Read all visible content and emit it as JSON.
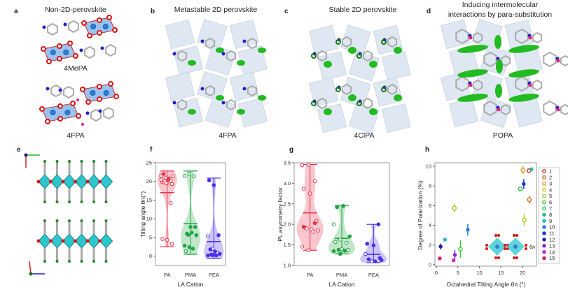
{
  "panels": {
    "a": {
      "letter": "a",
      "title": "Non-2D-perovskite",
      "captions": [
        "4MePA",
        "4FPA"
      ]
    },
    "b": {
      "letter": "b",
      "title": "Metastable 2D perovskite",
      "caption": "4FPA"
    },
    "c": {
      "letter": "c",
      "title": "Stable 2D perovskite",
      "caption": "4ClPA"
    },
    "d": {
      "letter": "d",
      "title_line1": "Inducing intermolecular",
      "title_line2": "interactions by para-substitution",
      "caption": "POPA"
    },
    "e": {
      "letter": "e"
    },
    "f": {
      "letter": "f"
    },
    "g": {
      "letter": "g"
    },
    "h": {
      "letter": "h"
    }
  },
  "colors": {
    "PA": "#e8334a",
    "PMA": "#1fa640",
    "PEA": "#4a2ee8",
    "octahedron_light": "#dfe8f2",
    "octahedron_blue": "#6fa8e8",
    "octahedron_cyan": "#2cc6cc",
    "oxygen": "#e01010",
    "nitrogen": "#2020d0",
    "halogen": "#22bb22"
  },
  "chart_data": [
    {
      "id": "f",
      "type": "violin",
      "xlabel": "LA Cation",
      "ylabel": "Tilting angle θn(°)",
      "categories": [
        "PA",
        "PMA",
        "PEA"
      ],
      "ylim": [
        -2.5,
        25
      ],
      "yticks": [
        0,
        5,
        10,
        15,
        20,
        25
      ],
      "series": [
        {
          "category": "PA",
          "mean": 17.0,
          "min": 2.5,
          "max": 22.8,
          "open": [
            21.5,
            21.0,
            20.2,
            19.8,
            19.6,
            19.3,
            19.8,
            20.5,
            21.4,
            20.1,
            20.8,
            20.5,
            19.6,
            14.2,
            4.6,
            4.3,
            3.3
          ],
          "filled": [
            22.0,
            20.7
          ]
        },
        {
          "category": "PMA",
          "mean": 8.7,
          "min": 0.5,
          "max": 22.8,
          "open": [
            21.5,
            22.0,
            21.4,
            1.3
          ],
          "filled": [
            7.8,
            7.8,
            6.0,
            6.3,
            5.6,
            5.7,
            2.0,
            2.8,
            2.4
          ]
        },
        {
          "category": "PEA",
          "mean": 3.9,
          "min": -0.6,
          "max": 20.9,
          "open": [
            5.3,
            2.0,
            0.9
          ],
          "filled": [
            20.3,
            19.0,
            5.6,
            1.8,
            1.2,
            0.6,
            0.4,
            0.2,
            0.2,
            0.3
          ]
        }
      ]
    },
    {
      "id": "g",
      "type": "violin",
      "xlabel": "LA Cation",
      "ylabel": "PL asymmetry factor",
      "categories": [
        "PA",
        "PMA",
        "PEA"
      ],
      "ylim": [
        1.0,
        3.5
      ],
      "yticks": [
        1.0,
        1.5,
        2.0,
        2.5,
        3.0,
        3.5
      ],
      "series": [
        {
          "category": "PA",
          "mean": 2.28,
          "min": 1.37,
          "max": 3.46,
          "open": [
            3.44,
            3.45,
            3.05,
            2.87,
            2.75,
            2.08,
            1.92,
            1.88,
            1.85,
            1.9,
            1.82,
            1.46,
            1.37
          ],
          "filled": [
            2.03,
            1.94
          ]
        },
        {
          "category": "PMA",
          "mean": 1.66,
          "min": 1.28,
          "max": 2.46,
          "open": [
            2.0,
            1.63,
            1.55,
            1.57,
            1.4,
            1.38
          ],
          "filled": [
            2.42,
            2.45,
            1.71,
            1.38,
            1.36,
            1.35,
            1.28
          ]
        },
        {
          "category": "PEA",
          "mean": 1.27,
          "min": 1.07,
          "max": 2.0,
          "open": [
            1.28,
            1.1
          ],
          "filled": [
            2.0,
            1.53,
            1.49,
            1.18,
            1.15,
            1.1,
            1.13
          ]
        }
      ]
    },
    {
      "id": "h",
      "type": "scatter",
      "xlabel": "Octahedral Tilting Angle θn (°)",
      "ylabel": "Degree of Polarization (%)",
      "xlim": [
        0,
        23
      ],
      "ylim": [
        0,
        10.5
      ],
      "xticks": [
        0,
        5,
        10,
        15,
        20
      ],
      "yticks": [
        0,
        2,
        4,
        6,
        8,
        10
      ],
      "inset_label": "θn",
      "legend_position": "right-outside",
      "points": [
        {
          "label": "1",
          "x": 21.5,
          "y": 9.55,
          "color": "#d42020",
          "open": true,
          "yerr": 0.1
        },
        {
          "label": "2",
          "x": 21.6,
          "y": 6.6,
          "color": "#d46a20",
          "open": true,
          "yerr": 0.4
        },
        {
          "label": "3",
          "x": 20.1,
          "y": 9.6,
          "color": "#d4a020",
          "open": true,
          "yerr": 0.4
        },
        {
          "label": "4",
          "x": 20.4,
          "y": 4.55,
          "color": "#b8c820",
          "open": true,
          "yerr": 0.6
        },
        {
          "label": "5",
          "x": 4.2,
          "y": 5.75,
          "color": "#8ccc20",
          "open": true,
          "yerr": 0.4
        },
        {
          "label": "6",
          "x": 5.6,
          "y": 1.6,
          "color": "#3ccc30",
          "open": true,
          "yerr": 0.9
        },
        {
          "label": "7",
          "x": 19.5,
          "y": 7.7,
          "color": "#20c040",
          "open": true,
          "yerr": 0.1
        },
        {
          "label": "8",
          "x": 22.1,
          "y": 9.7,
          "color": "#20c08a",
          "open": false,
          "yerr": 0.1
        },
        {
          "label": "9",
          "x": 2.0,
          "y": 2.55,
          "color": "#20b8d0",
          "open": false,
          "yerr": 0.1
        },
        {
          "label": "10",
          "x": 7.3,
          "y": 3.55,
          "color": "#2080d8",
          "open": false,
          "yerr": 0.6
        },
        {
          "label": "11",
          "x": 20.3,
          "y": 8.2,
          "color": "#2030d8",
          "open": false,
          "yerr": 0.5
        },
        {
          "label": "12",
          "x": 1.0,
          "y": 1.85,
          "color": "#2020a0",
          "open": false,
          "yerr": 0.3
        },
        {
          "label": "13",
          "x": 4.3,
          "y": 1.0,
          "color": "#8a20d0",
          "open": false,
          "yerr": 0.5
        },
        {
          "label": "14",
          "x": 4.0,
          "y": 0.45,
          "color": "#d020d0",
          "open": false,
          "yerr": 0.1
        },
        {
          "label": "15",
          "x": 0.8,
          "y": 0.65,
          "color": "#d0206a",
          "open": false,
          "yerr": 0.1
        }
      ]
    }
  ]
}
